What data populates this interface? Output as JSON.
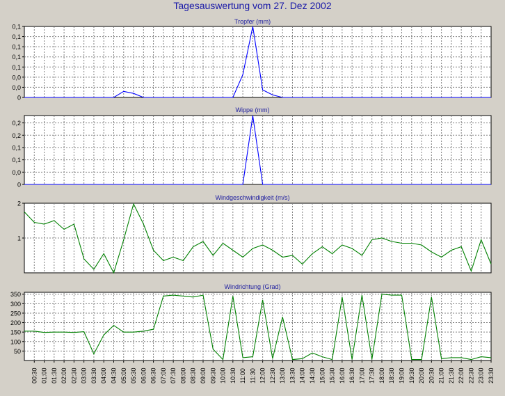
{
  "title": "Tagesauswertung vom 27. Dez 2002",
  "colors": {
    "background": "#d4d0c8",
    "plot_background": "#ffffff",
    "title_text": "#1a1aa8",
    "panel_title_text": "#2020a0",
    "grid": "#808080",
    "blue_series": "#0000ff",
    "green_series": "#008000"
  },
  "x_tick_labels": [
    "00:30",
    "01:00",
    "01:30",
    "02:00",
    "02:30",
    "03:00",
    "03:30",
    "04:00",
    "04:30",
    "05:00",
    "05:30",
    "06:00",
    "06:30",
    "07:00",
    "07:30",
    "08:00",
    "08:30",
    "09:00",
    "09:30",
    "10:00",
    "10:30",
    "11:00",
    "11:30",
    "12:00",
    "12:30",
    "13:00",
    "13:30",
    "14:00",
    "14:30",
    "15:00",
    "15:30",
    "16:00",
    "16:30",
    "17:00",
    "17:30",
    "18:00",
    "18:30",
    "19:00",
    "19:30",
    "20:00",
    "20:30",
    "21:00",
    "21:30",
    "22:00",
    "22:30",
    "23:00",
    "23:30"
  ],
  "chart_data": [
    {
      "type": "line",
      "title": "Tropfer (mm)",
      "ylim": [
        0,
        0.14
      ],
      "y_ticks": [
        0,
        0.02,
        0.04,
        0.06,
        0.08,
        0.1,
        0.12,
        0.14
      ],
      "y_tick_labels": [
        "0",
        "0,0",
        "0,0",
        "0,1",
        "0,1",
        "0,1",
        "0,1",
        "0,1"
      ],
      "series": [
        {
          "color": "#0000ff",
          "values": [
            0,
            0,
            0,
            0,
            0,
            0,
            0,
            0,
            0,
            0,
            0.012,
            0.008,
            0,
            0,
            0,
            0,
            0,
            0,
            0,
            0,
            0,
            0,
            0.045,
            0.14,
            0.015,
            0.005,
            0,
            0,
            0,
            0,
            0,
            0,
            0,
            0,
            0,
            0,
            0,
            0,
            0,
            0,
            0,
            0,
            0,
            0,
            0,
            0,
            0,
            0
          ]
        }
      ]
    },
    {
      "type": "line",
      "title": "Wippe (mm)",
      "ylim": [
        0,
        0.28
      ],
      "y_ticks": [
        0,
        0.05,
        0.1,
        0.15,
        0.2,
        0.25
      ],
      "y_tick_labels": [
        "0",
        "0,0",
        "0,1",
        "0,1",
        "0,2",
        "0,2"
      ],
      "series": [
        {
          "color": "#0000ff",
          "values": [
            0,
            0,
            0,
            0,
            0,
            0,
            0,
            0,
            0,
            0,
            0,
            0,
            0,
            0,
            0,
            0,
            0,
            0,
            0,
            0,
            0,
            0,
            0,
            0.28,
            0,
            0,
            0,
            0,
            0,
            0,
            0,
            0,
            0,
            0,
            0,
            0,
            0,
            0,
            0,
            0,
            0,
            0,
            0,
            0,
            0,
            0,
            0,
            0
          ]
        }
      ]
    },
    {
      "type": "line",
      "title": "Windgeschwindigkeit (m/s)",
      "ylim": [
        0,
        2
      ],
      "y_ticks": [
        1,
        2
      ],
      "y_tick_labels": [
        "1",
        "2"
      ],
      "series": [
        {
          "color": "#008000",
          "values": [
            1.75,
            1.45,
            1.4,
            1.5,
            1.25,
            1.4,
            0.4,
            0.1,
            0.55,
            0,
            0.95,
            1.98,
            1.4,
            0.65,
            0.35,
            0.45,
            0.35,
            0.75,
            0.9,
            0.5,
            0.85,
            0.65,
            0.45,
            0.7,
            0.8,
            0.65,
            0.45,
            0.5,
            0.25,
            0.55,
            0.75,
            0.55,
            0.8,
            0.7,
            0.5,
            0.95,
            1.0,
            0.9,
            0.85,
            0.85,
            0.8,
            0.6,
            0.45,
            0.65,
            0.75,
            0.05,
            0.95,
            0.25
          ]
        }
      ]
    },
    {
      "type": "line",
      "title": "Windrichtung (Grad)",
      "ylim": [
        0,
        360
      ],
      "y_ticks": [
        50,
        100,
        150,
        200,
        250,
        300,
        350
      ],
      "y_tick_labels": [
        "50",
        "100",
        "150",
        "200",
        "250",
        "300",
        "350"
      ],
      "series": [
        {
          "color": "#008000",
          "values": [
            155,
            155,
            148,
            150,
            150,
            148,
            152,
            35,
            135,
            185,
            150,
            150,
            155,
            165,
            340,
            345,
            340,
            335,
            345,
            60,
            5,
            340,
            15,
            20,
            320,
            10,
            230,
            5,
            10,
            40,
            20,
            5,
            335,
            5,
            345,
            5,
            350,
            345,
            345,
            5,
            5,
            335,
            10,
            15,
            15,
            5,
            20,
            15
          ]
        }
      ]
    }
  ]
}
